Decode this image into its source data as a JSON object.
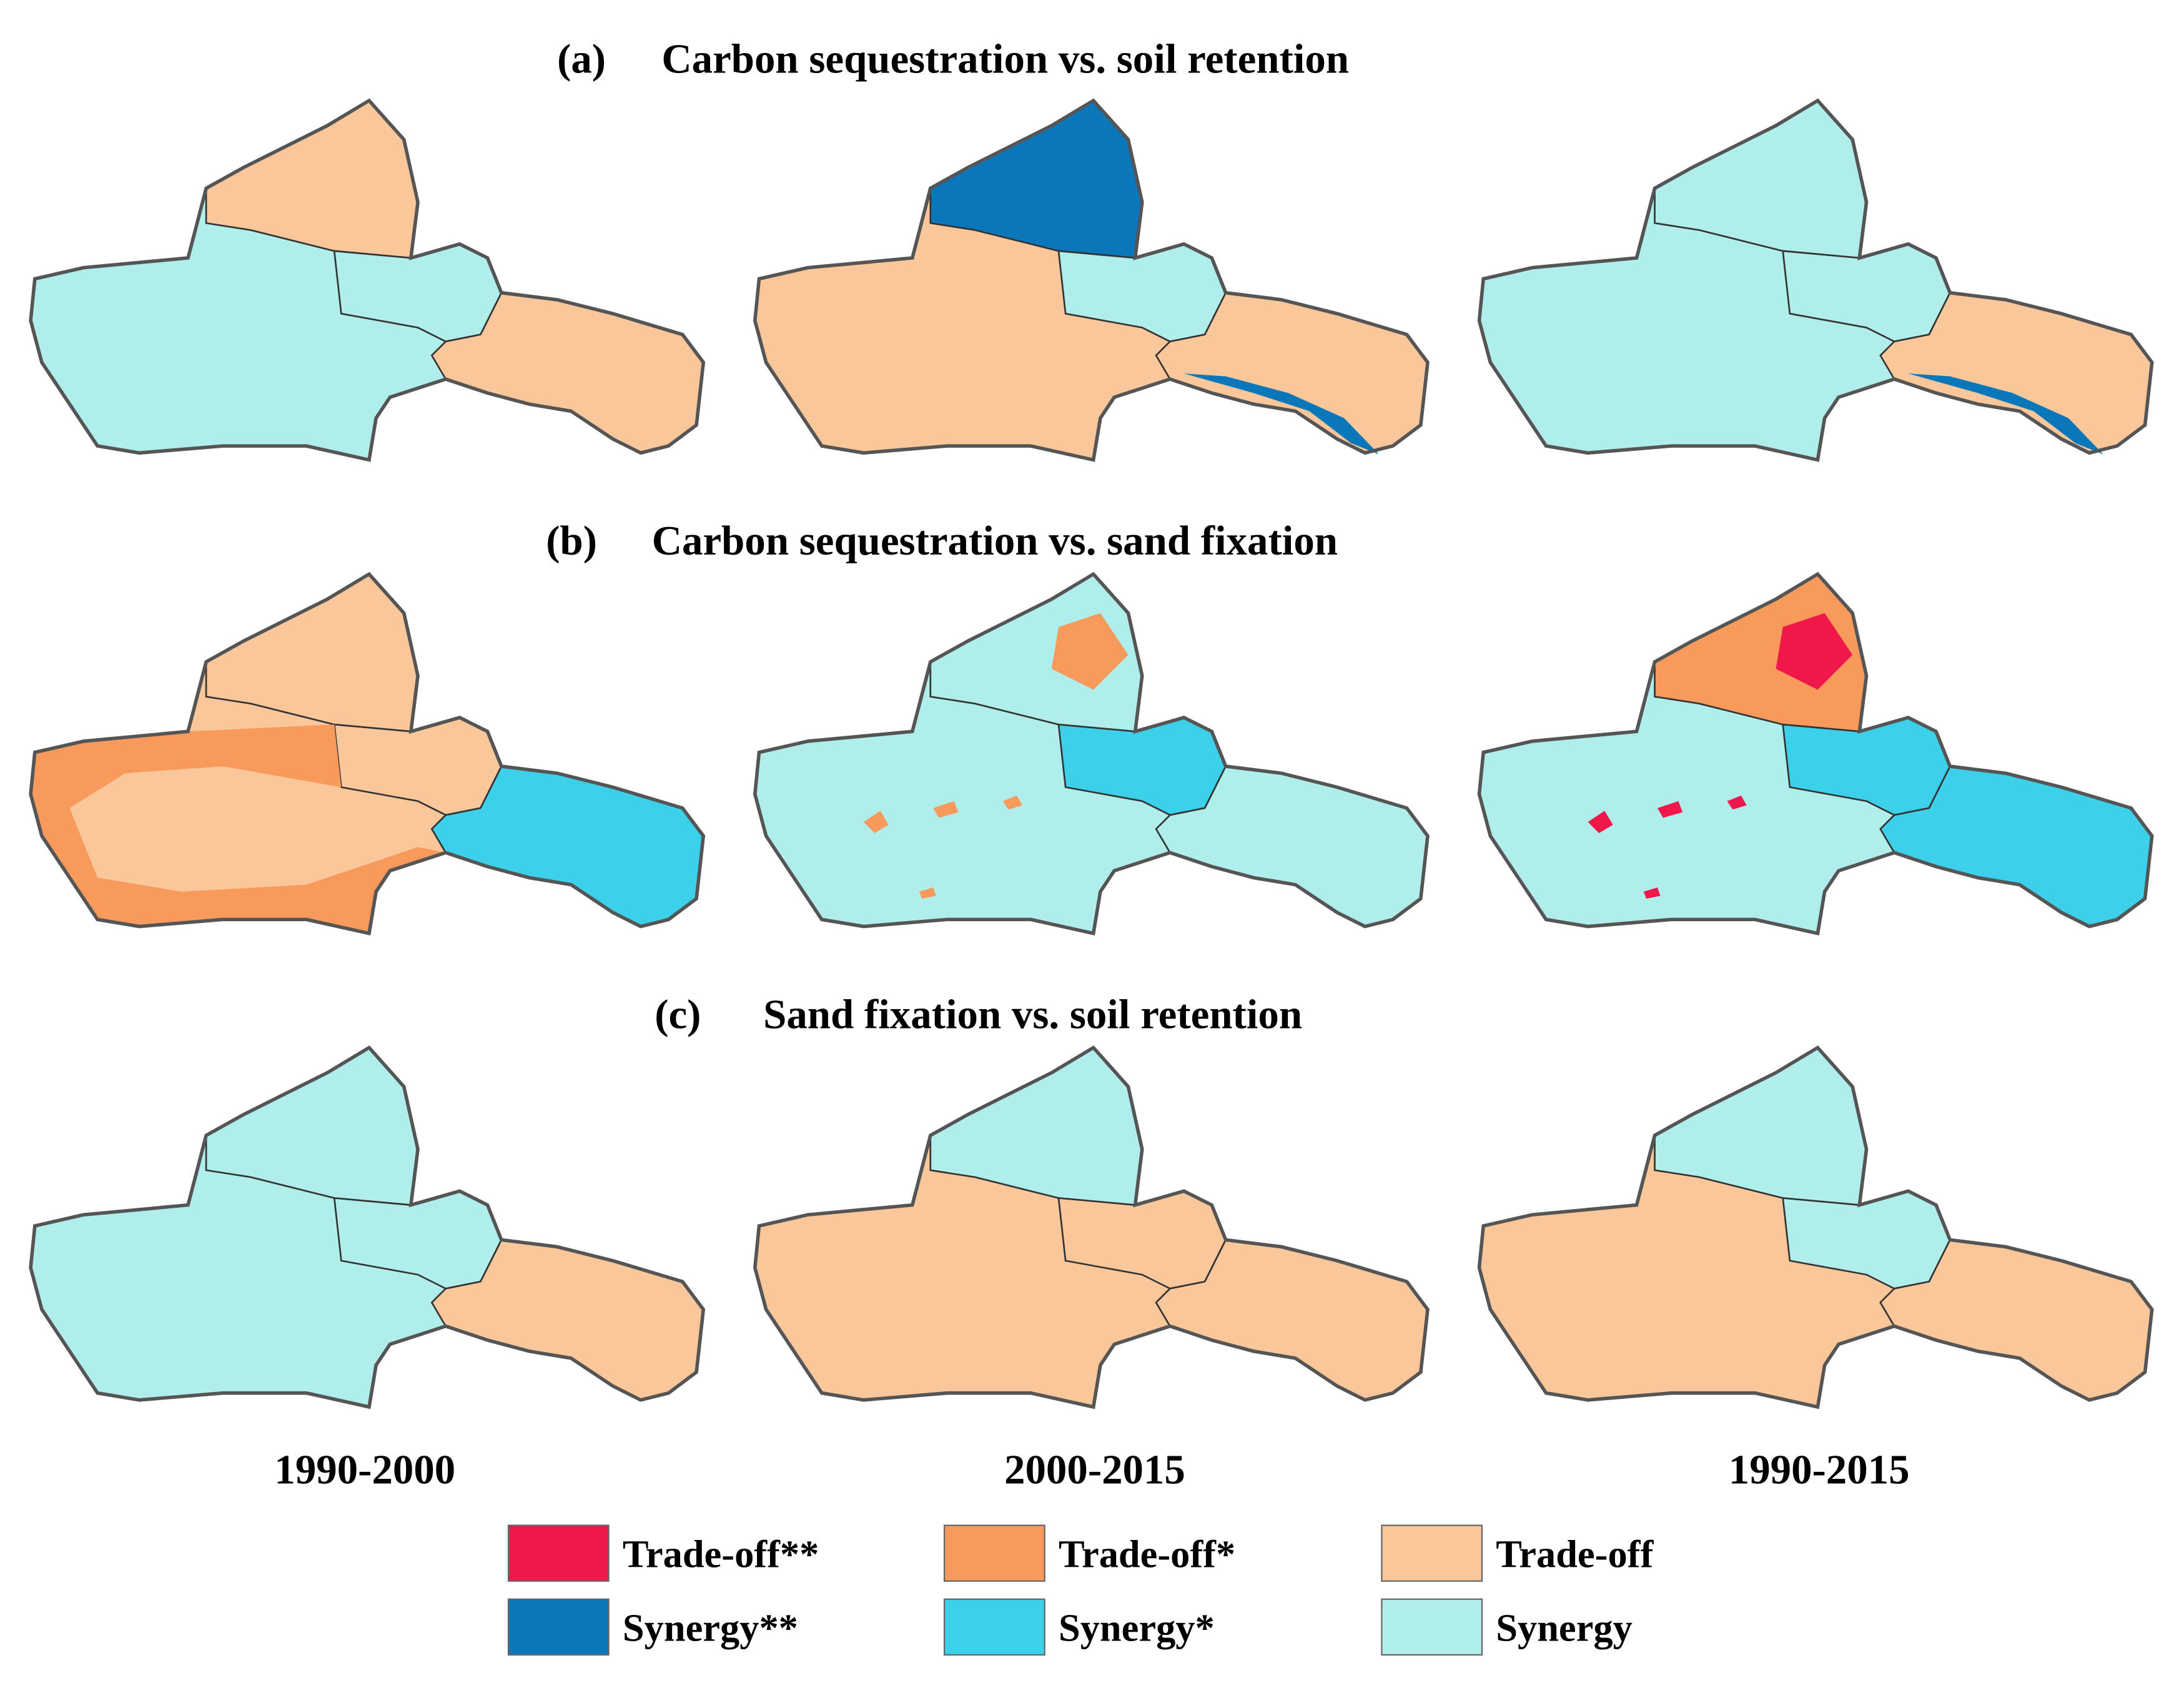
{
  "panels": [
    {
      "label": "(a)",
      "title": "Carbon sequestration vs. soil retention"
    },
    {
      "label": "(b)",
      "title": "Carbon sequestration vs. sand fixation"
    },
    {
      "label": "(c)",
      "title": "Sand fixation vs. soil retention"
    }
  ],
  "periods": [
    "1990-2000",
    "2000-2015",
    "1990-2015"
  ],
  "legend": [
    {
      "name": "Trade-off**",
      "color": "#f0174a"
    },
    {
      "name": "Trade-off*",
      "color": "#f79a5c"
    },
    {
      "name": "Trade-off",
      "color": "#f9c79a"
    },
    {
      "name": "Synergy**",
      "color": "#0a77bb"
    },
    {
      "name": "Synergy*",
      "color": "#3dd0ea"
    },
    {
      "name": "Synergy",
      "color": "#b0eeec"
    }
  ]
}
